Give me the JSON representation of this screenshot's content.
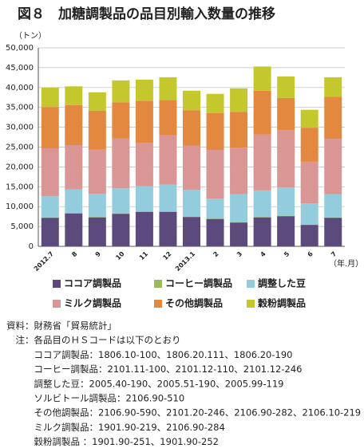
{
  "chart_data": {
    "type": "bar",
    "stacked": true,
    "title": "図８　加糖調製品の品目別輸入数量の推移",
    "y_label": "（トン）",
    "x_label": "（年.月）",
    "categories": [
      "2012.7",
      "8",
      "9",
      "10",
      "11",
      "12",
      "2013.1",
      "2",
      "3",
      "4",
      "5",
      "6",
      "7"
    ],
    "series": [
      {
        "name": "ココア調製品",
        "color": "#5c4a7d",
        "values": [
          7200,
          8300,
          7300,
          8200,
          8700,
          8700,
          7400,
          6900,
          6000,
          7300,
          7600,
          5400,
          7200
        ]
      },
      {
        "name": "コーヒー調製品",
        "color": "#9bbb59",
        "values": [
          100,
          100,
          100,
          100,
          100,
          100,
          100,
          100,
          100,
          100,
          100,
          100,
          100
        ]
      },
      {
        "name": "調整した豆",
        "color": "#93cddd",
        "values": [
          5300,
          5900,
          5800,
          6300,
          6300,
          6700,
          6700,
          5000,
          7000,
          6700,
          7100,
          5300,
          5800
        ]
      },
      {
        "name": "ミルク調製品",
        "color": "#d99694",
        "values": [
          12100,
          11200,
          11200,
          12600,
          11000,
          12500,
          11200,
          12300,
          11800,
          14100,
          14500,
          10500,
          14000
        ]
      },
      {
        "name": "その他調製品",
        "color": "#e3883f",
        "values": [
          10400,
          10100,
          9800,
          9100,
          10600,
          8900,
          8900,
          9300,
          9000,
          11000,
          8100,
          8600,
          10600
        ]
      },
      {
        "name": "穀粉調製品",
        "color": "#c5c82c",
        "values": [
          4900,
          4700,
          4600,
          5500,
          5300,
          5700,
          4900,
          4800,
          5900,
          6100,
          5400,
          4500,
          4900
        ]
      }
    ],
    "ylim": [
      0,
      50000
    ],
    "yticks": [
      0,
      {
        "value": 5000,
        "label": "5,000"
      },
      {
        "value": 10000,
        "label": "10,000"
      },
      {
        "value": 15000,
        "label": "15,000"
      },
      {
        "value": 20000,
        "label": "20,000"
      },
      {
        "value": 25000,
        "label": "25,000"
      },
      {
        "value": 30000,
        "label": "30,000"
      },
      {
        "value": 35000,
        "label": "35,000"
      },
      {
        "value": 40000,
        "label": "40,000"
      },
      {
        "value": 45000,
        "label": "45,000"
      },
      {
        "value": 50000,
        "label": "50,000"
      }
    ],
    "grid": true,
    "notes": [
      "資料：財務省「貿易統計」",
      "　注：各品目のＨＳコードは以下のとおり",
      "　　　ココア調製品：1806.10-100、1806.20.111、1806.20-190",
      "　　　コーヒー調製品：2101.11-100、2101.12-110、2101.12-246",
      "　　　調整した豆：2005.40-190、2005.51-190、2005.99-119",
      "　　　ソルビトール調製品：2106.90-510",
      "　　　その他調製品：2106.90-590、2101.20-246、2106.90-282、2106.10-219",
      "　　　ミルク調製品：1901.90-219、2106.90-284",
      "　　　穀粉調製品 ：1901.90-251、1901.90-252"
    ]
  }
}
